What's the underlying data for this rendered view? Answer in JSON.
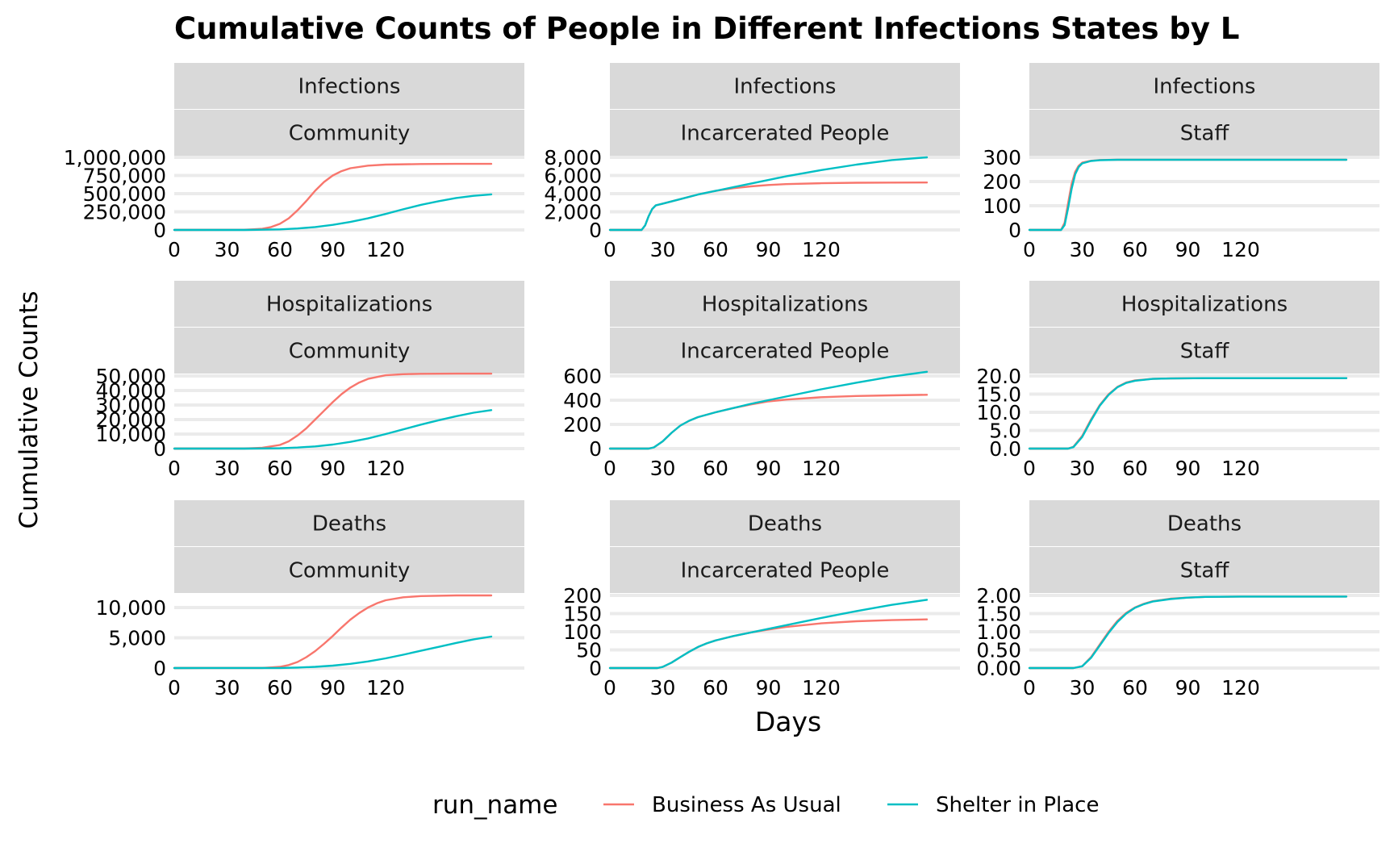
{
  "chart_data": {
    "type": "line",
    "title": "Cumulative Counts of People in Different Infections States by L",
    "xlabel": "Days",
    "ylabel": "Cumulative Counts",
    "grid": true,
    "legend": {
      "title": "run_name",
      "position": "bottom",
      "entries": [
        {
          "name": "Business As Usual",
          "color": "#F8766D"
        },
        {
          "name": "Shelter in Place",
          "color": "#00BFC4"
        }
      ]
    },
    "x_ticks": [
      0,
      30,
      60,
      90,
      120
    ],
    "xlim": [
      0,
      200
    ],
    "panels": [
      {
        "row_label": "Infections",
        "col_label": "Community",
        "ylim": [
          0,
          1000000
        ],
        "y_ticks": [
          0,
          250000,
          500000,
          750000,
          1000000
        ],
        "y_tick_labels": [
          "0",
          "250,000",
          "500,000",
          "750,000",
          "1,000,000"
        ],
        "series": [
          {
            "name": "Business As Usual",
            "x": [
              0,
              40,
              50,
              55,
              60,
              65,
              70,
              75,
              80,
              85,
              90,
              95,
              100,
              110,
              120,
              140,
              160,
              180
            ],
            "y": [
              0,
              2000,
              15000,
              40000,
              85000,
              160000,
              270000,
              400000,
              540000,
              660000,
              750000,
              810000,
              850000,
              885000,
              900000,
              908000,
              910000,
              910000
            ]
          },
          {
            "name": "Shelter in Place",
            "x": [
              0,
              40,
              60,
              70,
              80,
              90,
              100,
              110,
              120,
              130,
              140,
              150,
              160,
              170,
              180
            ],
            "y": [
              0,
              500,
              8000,
              20000,
              40000,
              70000,
              110000,
              160000,
              220000,
              285000,
              345000,
              395000,
              440000,
              470000,
              490000
            ]
          }
        ]
      },
      {
        "row_label": "Infections",
        "col_label": "Incarcerated People",
        "ylim": [
          0,
          8000
        ],
        "y_ticks": [
          0,
          2000,
          4000,
          6000,
          8000
        ],
        "y_tick_labels": [
          "0",
          "2,000",
          "4,000",
          "6,000",
          "8,000"
        ],
        "series": [
          {
            "name": "Business As Usual",
            "x": [
              0,
              18,
              20,
              22,
              24,
              26,
              30,
              40,
              50,
              60,
              70,
              80,
              90,
              100,
              120,
              140,
              160,
              180
            ],
            "y": [
              0,
              0,
              500,
              1500,
              2300,
              2700,
              2900,
              3400,
              3900,
              4300,
              4600,
              4800,
              4950,
              5050,
              5150,
              5200,
              5220,
              5230
            ]
          },
          {
            "name": "Shelter in Place",
            "x": [
              0,
              18,
              20,
              22,
              24,
              26,
              30,
              40,
              50,
              60,
              70,
              80,
              90,
              100,
              120,
              140,
              160,
              180
            ],
            "y": [
              0,
              0,
              500,
              1500,
              2300,
              2700,
              2900,
              3400,
              3900,
              4300,
              4700,
              5100,
              5500,
              5900,
              6600,
              7200,
              7700,
              8000
            ]
          }
        ]
      },
      {
        "row_label": "Infections",
        "col_label": "Staff",
        "ylim": [
          0,
          300
        ],
        "y_ticks": [
          0,
          100,
          200,
          300
        ],
        "y_tick_labels": [
          "0",
          "100",
          "200",
          "300"
        ],
        "series": [
          {
            "name": "Business As Usual",
            "x": [
              0,
              18,
              20,
              22,
              24,
              26,
              28,
              30,
              35,
              40,
              50,
              180
            ],
            "y": [
              0,
              0,
              30,
              110,
              190,
              240,
              265,
              278,
              286,
              289,
              290,
              290
            ]
          },
          {
            "name": "Shelter in Place",
            "x": [
              0,
              18,
              20,
              22,
              24,
              26,
              28,
              30,
              35,
              40,
              50,
              180
            ],
            "y": [
              0,
              0,
              20,
              90,
              170,
              230,
              260,
              275,
              285,
              288,
              290,
              290
            ]
          }
        ]
      },
      {
        "row_label": "Hospitalizations",
        "col_label": "Community",
        "ylim": [
          0,
          50000
        ],
        "y_ticks": [
          0,
          10000,
          20000,
          30000,
          40000,
          50000
        ],
        "y_tick_labels": [
          "0",
          "10,000",
          "20,000",
          "30,000",
          "40,000",
          "50,000"
        ],
        "series": [
          {
            "name": "Business As Usual",
            "x": [
              0,
              40,
              50,
              60,
              65,
              70,
              75,
              80,
              85,
              90,
              95,
              100,
              105,
              110,
              120,
              130,
              140,
              160,
              180
            ],
            "y": [
              0,
              50,
              600,
              2500,
              5000,
              9000,
              14000,
              20000,
              26000,
              32000,
              37500,
              42000,
              45500,
              48000,
              50500,
              51200,
              51500,
              51600,
              51600
            ]
          },
          {
            "name": "Shelter in Place",
            "x": [
              0,
              40,
              60,
              70,
              80,
              90,
              100,
              110,
              120,
              130,
              140,
              150,
              160,
              170,
              180
            ],
            "y": [
              0,
              10,
              200,
              700,
              1500,
              2800,
              4600,
              7000,
              10000,
              13200,
              16500,
              19500,
              22300,
              24700,
              26500
            ]
          }
        ]
      },
      {
        "row_label": "Hospitalizations",
        "col_label": "Incarcerated People",
        "ylim": [
          0,
          600
        ],
        "y_ticks": [
          0,
          200,
          400,
          600
        ],
        "y_tick_labels": [
          "0",
          "200",
          "400",
          "600"
        ],
        "series": [
          {
            "name": "Business As Usual",
            "x": [
              0,
              22,
              25,
              30,
              35,
              40,
              45,
              50,
              60,
              70,
              80,
              90,
              100,
              120,
              140,
              160,
              180
            ],
            "y": [
              0,
              0,
              10,
              60,
              130,
              190,
              230,
              260,
              300,
              335,
              365,
              390,
              405,
              425,
              435,
              440,
              445
            ]
          },
          {
            "name": "Shelter in Place",
            "x": [
              0,
              22,
              25,
              30,
              35,
              40,
              45,
              50,
              60,
              70,
              80,
              90,
              100,
              120,
              140,
              160,
              180
            ],
            "y": [
              0,
              0,
              10,
              60,
              130,
              190,
              230,
              260,
              300,
              335,
              370,
              400,
              430,
              490,
              545,
              595,
              635
            ]
          }
        ]
      },
      {
        "row_label": "Hospitalizations",
        "col_label": "Staff",
        "ylim": [
          0,
          20
        ],
        "y_ticks": [
          0,
          5,
          10,
          15,
          20
        ],
        "y_tick_labels": [
          "0.0",
          "5.0",
          "10.0",
          "15.0",
          "20.0"
        ],
        "series": [
          {
            "name": "Business As Usual",
            "x": [
              0,
              22,
              25,
              30,
              35,
              40,
              45,
              50,
              55,
              60,
              70,
              80,
              100,
              180
            ],
            "y": [
              0,
              0,
              0.5,
              3.5,
              8,
              12,
              15,
              17,
              18.2,
              18.8,
              19.2,
              19.3,
              19.4,
              19.4
            ]
          },
          {
            "name": "Shelter in Place",
            "x": [
              0,
              22,
              25,
              30,
              35,
              40,
              45,
              50,
              55,
              60,
              70,
              80,
              100,
              180
            ],
            "y": [
              0,
              0,
              0.4,
              3.2,
              7.7,
              11.8,
              14.8,
              16.9,
              18.1,
              18.7,
              19.2,
              19.3,
              19.4,
              19.4
            ]
          }
        ]
      },
      {
        "row_label": "Deaths",
        "col_label": "Community",
        "ylim": [
          0,
          12000
        ],
        "y_ticks": [
          0,
          5000,
          10000
        ],
        "y_tick_labels": [
          "0",
          "5,000",
          "10,000"
        ],
        "series": [
          {
            "name": "Business As Usual",
            "x": [
              0,
              50,
              60,
              65,
              70,
              75,
              80,
              85,
              90,
              95,
              100,
              105,
              110,
              115,
              120,
              130,
              140,
              160,
              180
            ],
            "y": [
              0,
              20,
              200,
              500,
              1000,
              1800,
              2800,
              4000,
              5300,
              6700,
              8000,
              9100,
              10000,
              10700,
              11200,
              11700,
              11900,
              12000,
              12000
            ]
          },
          {
            "name": "Shelter in Place",
            "x": [
              0,
              60,
              70,
              80,
              90,
              100,
              110,
              120,
              130,
              140,
              150,
              160,
              170,
              180
            ],
            "y": [
              0,
              20,
              80,
              200,
              400,
              700,
              1100,
              1600,
              2200,
              2850,
              3500,
              4150,
              4750,
              5200
            ]
          }
        ]
      },
      {
        "row_label": "Deaths",
        "col_label": "Incarcerated People",
        "ylim": [
          0,
          200
        ],
        "y_ticks": [
          0,
          50,
          100,
          150,
          200
        ],
        "y_tick_labels": [
          "0",
          "50",
          "100",
          "150",
          "200"
        ],
        "series": [
          {
            "name": "Business As Usual",
            "x": [
              0,
              27,
              30,
              35,
              40,
              45,
              50,
              55,
              60,
              70,
              80,
              90,
              100,
              120,
              140,
              160,
              180
            ],
            "y": [
              0,
              0,
              3,
              15,
              30,
              45,
              58,
              68,
              76,
              88,
              98,
              106,
              113,
              123,
              129,
              132,
              134
            ]
          },
          {
            "name": "Shelter in Place",
            "x": [
              0,
              27,
              30,
              35,
              40,
              45,
              50,
              55,
              60,
              70,
              80,
              90,
              100,
              120,
              140,
              160,
              180
            ],
            "y": [
              0,
              0,
              3,
              15,
              30,
              45,
              58,
              68,
              76,
              88,
              98,
              108,
              118,
              138,
              157,
              174,
              188
            ]
          }
        ]
      },
      {
        "row_label": "Deaths",
        "col_label": "Staff",
        "ylim": [
          0,
          2
        ],
        "y_ticks": [
          0,
          0.5,
          1,
          1.5,
          2
        ],
        "y_tick_labels": [
          "0.00",
          "0.50",
          "1.00",
          "1.50",
          "2.00"
        ],
        "series": [
          {
            "name": "Business As Usual",
            "x": [
              0,
              25,
              30,
              35,
              40,
              45,
              50,
              55,
              60,
              65,
              70,
              80,
              90,
              100,
              120,
              180
            ],
            "y": [
              0,
              0,
              0.05,
              0.3,
              0.65,
              1.0,
              1.3,
              1.52,
              1.67,
              1.77,
              1.84,
              1.91,
              1.94,
              1.96,
              1.97,
              1.97
            ]
          },
          {
            "name": "Shelter in Place",
            "x": [
              0,
              25,
              30,
              35,
              40,
              45,
              50,
              55,
              60,
              65,
              70,
              80,
              90,
              100,
              120,
              180
            ],
            "y": [
              0,
              0,
              0.05,
              0.28,
              0.62,
              0.97,
              1.27,
              1.5,
              1.66,
              1.76,
              1.83,
              1.9,
              1.94,
              1.96,
              1.97,
              1.97
            ]
          }
        ]
      }
    ]
  }
}
